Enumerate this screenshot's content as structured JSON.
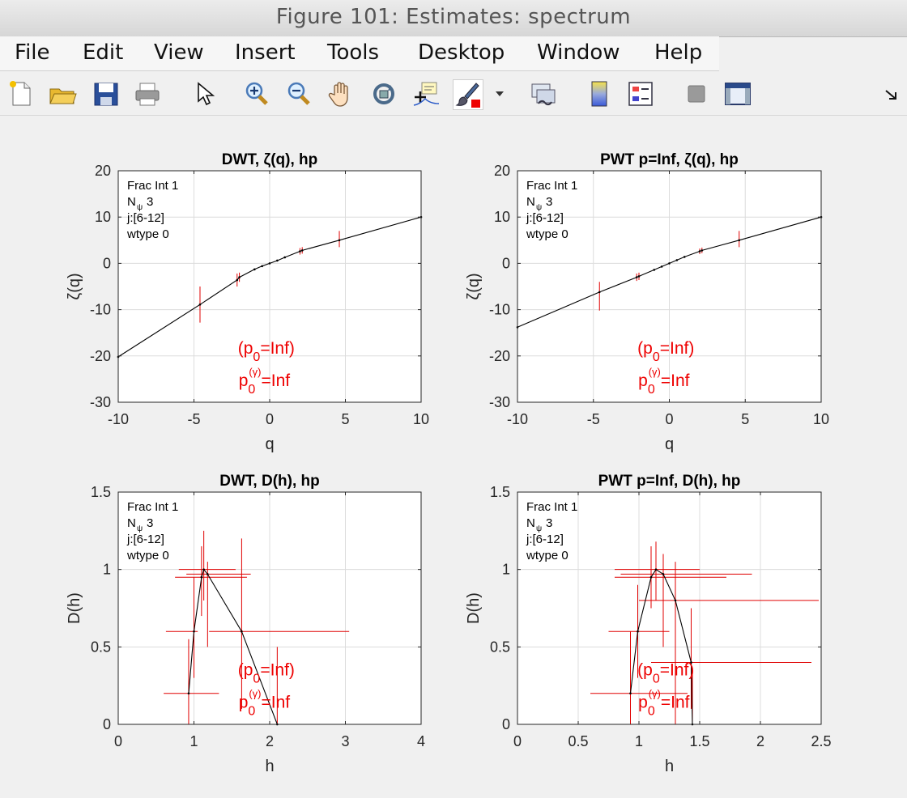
{
  "window": {
    "title": "Figure 101: Estimates: spectrum"
  },
  "menu": [
    "File",
    "Edit",
    "View",
    "Insert",
    "Tools",
    "Desktop",
    "Window",
    "Help"
  ],
  "toolbar": [
    "new-figure-icon",
    "open-file-icon",
    "save-icon",
    "print-icon",
    "pointer-icon",
    "zoom-in-icon",
    "zoom-out-icon",
    "pan-hand-icon",
    "rotate-3d-icon",
    "data-cursor-icon",
    "brush-icon",
    "brush-dropdown-icon",
    "link-plot-icon",
    "colorbar-icon",
    "legend-icon",
    "hide-plot-tools-icon",
    "show-plot-tools-icon",
    "dock-arrow-icon"
  ],
  "colors": {
    "curve": "#000000",
    "errorbar": "#e00000",
    "annotation": "#ee0000",
    "grid": "#dcdcdc"
  },
  "chart_data": [
    {
      "type": "line",
      "title": "DWT, ζ(q), hp",
      "xlabel": "q",
      "ylabel": "ζ(q)",
      "xlim": [
        -10,
        10
      ],
      "ylim": [
        -30,
        20
      ],
      "xticks": [
        -10,
        -5,
        0,
        5,
        10
      ],
      "yticks": [
        -30,
        -20,
        -10,
        0,
        10,
        20
      ],
      "grid": true,
      "info": [
        "Frac Int 1",
        "N 3",
        "j:[6-12]",
        "wtype 0"
      ],
      "info_sub": "ψ",
      "annotation": [
        "(p0=Inf)",
        "p0(γ)=Inf"
      ],
      "series": [
        {
          "x": [
            -10,
            -4.6,
            -2.15,
            -2,
            -1,
            -0.5,
            0,
            0.5,
            1,
            2,
            2.15,
            4.6,
            10
          ],
          "values": [
            -20.2,
            -8.9,
            -3.6,
            -3.0,
            -1.3,
            -0.6,
            0,
            0.6,
            1.3,
            2.6,
            2.8,
            5.0,
            10
          ]
        }
      ],
      "errorbars": [
        {
          "x": -10,
          "y": -20.2,
          "lo": -30,
          "hi": -10
        },
        {
          "x": -4.6,
          "y": -8.9,
          "lo": -12.8,
          "hi": -5
        },
        {
          "x": -2.15,
          "y": -3.6,
          "lo": -5,
          "hi": -2.2
        },
        {
          "x": -2.0,
          "y": -3.0,
          "lo": -4,
          "hi": -2
        },
        {
          "x": 2.0,
          "y": 2.6,
          "lo": 1.9,
          "hi": 3.3
        },
        {
          "x": 2.15,
          "y": 2.8,
          "lo": 2.1,
          "hi": 3.5
        },
        {
          "x": 4.6,
          "y": 5.0,
          "lo": 3.5,
          "hi": 7
        },
        {
          "x": 10,
          "y": 10,
          "lo": 7,
          "hi": 14.5
        }
      ]
    },
    {
      "type": "line",
      "title": "PWT p=Inf, ζ(q), hp",
      "xlabel": "q",
      "ylabel": "ζ(q)",
      "xlim": [
        -10,
        10
      ],
      "ylim": [
        -30,
        20
      ],
      "xticks": [
        -10,
        -5,
        0,
        5,
        10
      ],
      "yticks": [
        -30,
        -20,
        -10,
        0,
        10,
        20
      ],
      "grid": true,
      "info": [
        "Frac Int 1",
        "N 3",
        "j:[6-12]",
        "wtype 0"
      ],
      "info_sub": "ψ",
      "annotation": [
        "(p0=Inf)",
        "p0(γ)=Inf"
      ],
      "series": [
        {
          "x": [
            -10,
            -4.6,
            -2.15,
            -2,
            -1,
            -0.5,
            0,
            0.5,
            1,
            2,
            2.15,
            4.6,
            10
          ],
          "values": [
            -13.8,
            -6.2,
            -3.0,
            -2.8,
            -1.4,
            -0.7,
            0,
            0.7,
            1.4,
            2.6,
            2.8,
            5.0,
            10
          ]
        }
      ],
      "errorbars": [
        {
          "x": -10,
          "y": -13.8,
          "lo": -23,
          "hi": -5
        },
        {
          "x": -4.6,
          "y": -6.2,
          "lo": -10.2,
          "hi": -4
        },
        {
          "x": -2.15,
          "y": -3.0,
          "lo": -3.8,
          "hi": -2.2
        },
        {
          "x": -2.0,
          "y": -2.8,
          "lo": -3.6,
          "hi": -2
        },
        {
          "x": 2.0,
          "y": 2.6,
          "lo": 2.0,
          "hi": 3.2
        },
        {
          "x": 2.15,
          "y": 2.8,
          "lo": 2.2,
          "hi": 3.4
        },
        {
          "x": 4.6,
          "y": 5.0,
          "lo": 3.5,
          "hi": 7
        },
        {
          "x": 10,
          "y": 10,
          "lo": 7,
          "hi": 14.5
        }
      ]
    },
    {
      "type": "line",
      "title": "DWT, D(h), hp",
      "xlabel": "h",
      "ylabel": "D(h)",
      "xlim": [
        0,
        4
      ],
      "ylim": [
        0,
        1.5
      ],
      "xticks": [
        0,
        1,
        2,
        3,
        4
      ],
      "yticks": [
        0,
        0.5,
        1,
        1.5
      ],
      "grid": true,
      "info": [
        "Frac Int 1",
        "N 3",
        "j:[6-12]",
        "wtype 0"
      ],
      "info_sub": "ψ",
      "annotation": [
        "(p0=Inf)",
        "p0(γ)=Inf"
      ],
      "series": [
        {
          "x": [
            0.93,
            1.0,
            1.1,
            1.13,
            1.18,
            1.63,
            2.1
          ],
          "values": [
            0.2,
            0.6,
            0.95,
            1.0,
            0.97,
            0.6,
            0.0
          ]
        }
      ],
      "errorbars": [
        {
          "x": 0.93,
          "y": 0.2,
          "lo": 0,
          "hi": 0.55,
          "xlo": 0.6,
          "xhi": 1.33
        },
        {
          "x": 1.0,
          "y": 0.6,
          "lo": 0.3,
          "hi": 0.95,
          "xlo": 0.63,
          "xhi": 1.05
        },
        {
          "x": 1.1,
          "y": 0.95,
          "lo": 0.7,
          "hi": 1.15,
          "xlo": 0.75,
          "xhi": 1.7
        },
        {
          "x": 1.13,
          "y": 1.0,
          "lo": 0.8,
          "hi": 1.25,
          "xlo": 0.8,
          "xhi": 1.55
        },
        {
          "x": 1.18,
          "y": 0.97,
          "lo": 0.5,
          "hi": 1.05,
          "xlo": 0.9,
          "xhi": 1.75
        },
        {
          "x": 1.63,
          "y": 0.6,
          "lo": 0.1,
          "hi": 1.2,
          "xlo": 1.2,
          "xhi": 3.05
        },
        {
          "x": 2.1,
          "y": 0.0,
          "lo": 0.0,
          "hi": 0.5,
          "xlo": 1.15,
          "xhi": 3.0
        }
      ]
    },
    {
      "type": "line",
      "title": "PWT p=Inf, D(h), hp",
      "xlabel": "h",
      "ylabel": "D(h)",
      "xlim": [
        0,
        2.5
      ],
      "ylim": [
        0,
        1.5
      ],
      "xticks": [
        0,
        0.5,
        1,
        1.5,
        2,
        2.5
      ],
      "yticks": [
        0,
        0.5,
        1,
        1.5
      ],
      "grid": true,
      "info": [
        "Frac Int 1",
        "N 3",
        "j:[6-12]",
        "wtype 0"
      ],
      "info_sub": "ψ",
      "annotation": [
        "(p0=Inf)",
        "p0(γ)=Inf"
      ],
      "series": [
        {
          "x": [
            0.93,
            0.99,
            1.1,
            1.14,
            1.2,
            1.3,
            1.43,
            1.44
          ],
          "values": [
            0.2,
            0.6,
            0.95,
            1.0,
            0.97,
            0.8,
            0.4,
            0.0
          ]
        }
      ],
      "errorbars": [
        {
          "x": 0.93,
          "y": 0.2,
          "lo": 0,
          "hi": 0.6,
          "xlo": 0.6,
          "xhi": 1.4
        },
        {
          "x": 0.99,
          "y": 0.6,
          "lo": 0.3,
          "hi": 0.9,
          "xlo": 0.75,
          "xhi": 1.25
        },
        {
          "x": 1.1,
          "y": 0.95,
          "lo": 0.75,
          "hi": 1.15,
          "xlo": 0.8,
          "xhi": 1.72
        },
        {
          "x": 1.14,
          "y": 1.0,
          "lo": 0.8,
          "hi": 1.18,
          "xlo": 0.8,
          "xhi": 1.5
        },
        {
          "x": 1.2,
          "y": 0.97,
          "lo": 0.5,
          "hi": 1.1,
          "xlo": 0.85,
          "xhi": 1.93
        },
        {
          "x": 1.3,
          "y": 0.8,
          "lo": 0.0,
          "hi": 1.05,
          "xlo": 1.0,
          "xhi": 2.48
        },
        {
          "x": 1.43,
          "y": 0.4,
          "lo": 0.1,
          "hi": 0.75,
          "xlo": 1.1,
          "xhi": 2.42
        },
        {
          "x": 1.44,
          "y": 0.0,
          "lo": 0.0,
          "hi": 0.35,
          "xlo": 1.2,
          "xhi": 2.37
        }
      ]
    }
  ]
}
